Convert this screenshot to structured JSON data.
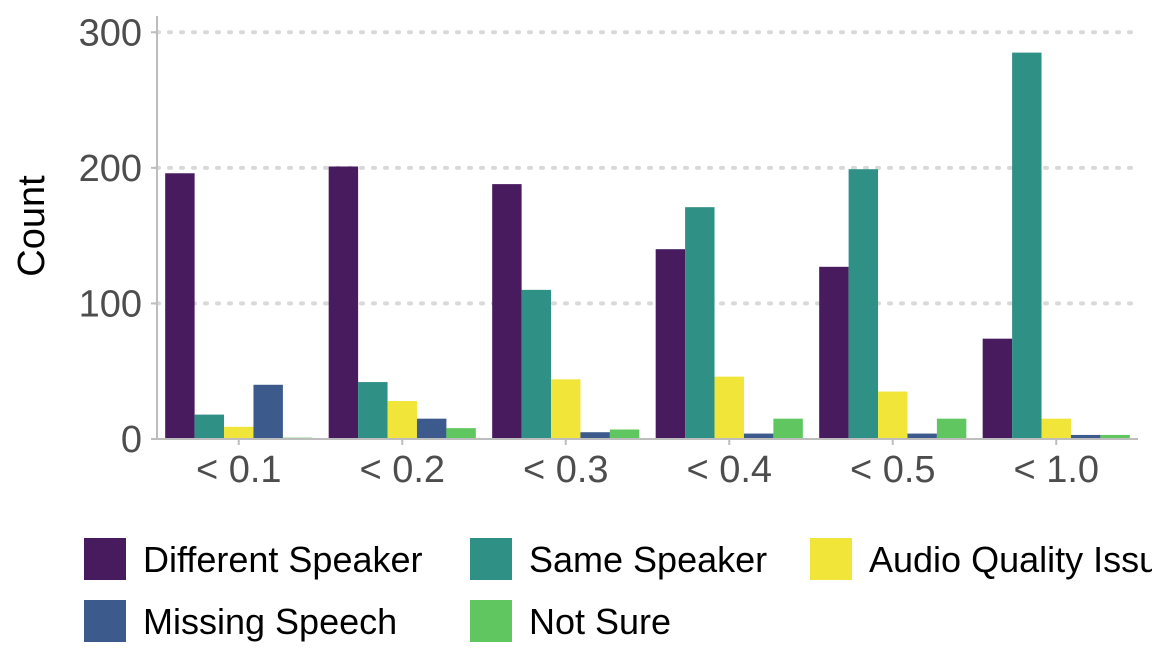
{
  "chart_data": {
    "type": "bar",
    "ylabel": "Count",
    "xlabel": "",
    "ylim": [
      0,
      312
    ],
    "yticks": [
      0,
      100,
      200,
      300
    ],
    "grid": "horizontal dotted",
    "legend_position": "bottom",
    "categories": [
      "< 0.1",
      "< 0.2",
      "< 0.3",
      "< 0.4",
      "< 0.5",
      "< 1.0"
    ],
    "series": [
      {
        "name": "Different Speaker",
        "color": "#481a5e",
        "values": [
          196,
          201,
          188,
          140,
          127,
          74
        ]
      },
      {
        "name": "Same Speaker",
        "color": "#2f9086",
        "values": [
          18,
          42,
          110,
          171,
          199,
          285
        ]
      },
      {
        "name": "Audio Quality Issue",
        "color": "#f1e53a",
        "values": [
          9,
          28,
          44,
          46,
          35,
          15
        ]
      },
      {
        "name": "Missing Speech",
        "color": "#3c5a8b",
        "values": [
          40,
          15,
          5,
          4,
          4,
          3
        ]
      },
      {
        "name": "Not Sure",
        "color": "#5fc660",
        "values": [
          1,
          8,
          7,
          15,
          15,
          3
        ]
      }
    ]
  }
}
